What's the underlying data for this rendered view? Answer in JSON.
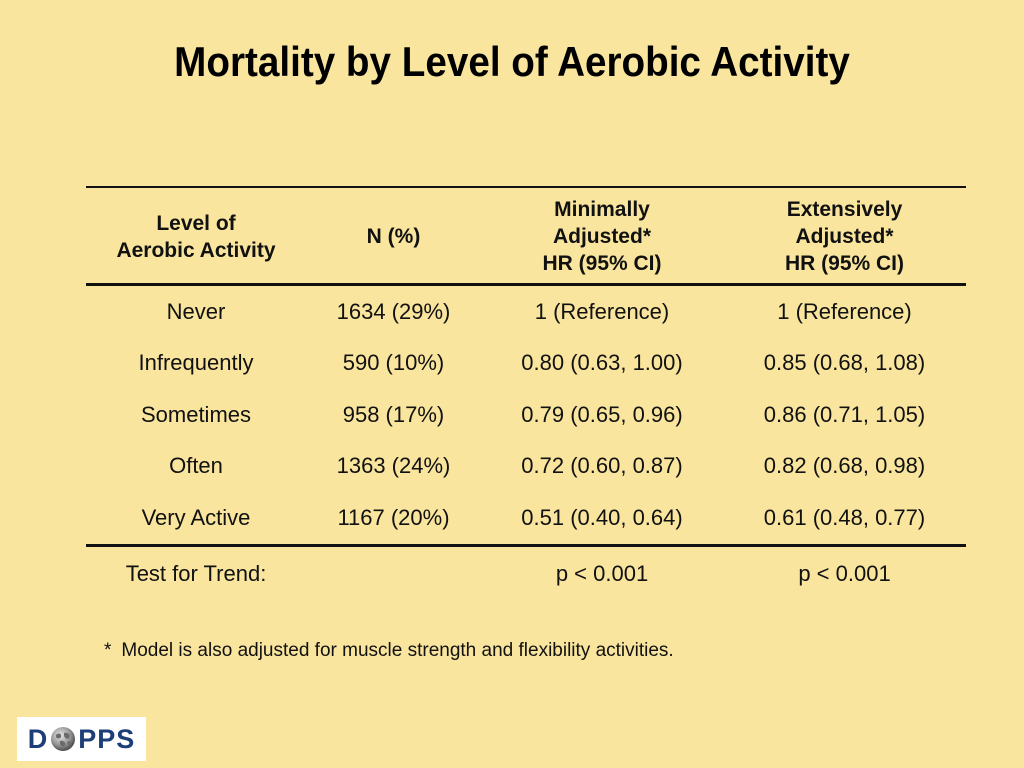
{
  "title": "Mortality by Level of Aerobic Activity",
  "table": {
    "headers": [
      [
        "Level of",
        "Aerobic Activity"
      ],
      [
        "N (%)"
      ],
      [
        "Minimally",
        "Adjusted*",
        "HR (95% CI)"
      ],
      [
        "Extensively",
        "Adjusted*",
        "HR (95% CI)"
      ]
    ],
    "rows": [
      [
        "Never",
        "1634 (29%)",
        "1 (Reference)",
        "1 (Reference)"
      ],
      [
        "Infrequently",
        "590 (10%)",
        "0.80 (0.63, 1.00)",
        "0.85 (0.68, 1.08)"
      ],
      [
        "Sometimes",
        "958 (17%)",
        "0.79 (0.65, 0.96)",
        "0.86 (0.71, 1.05)"
      ],
      [
        "Often",
        "1363 (24%)",
        "0.72 (0.60, 0.87)",
        "0.82 (0.68, 0.98)"
      ],
      [
        "Very Active",
        "1167 (20%)",
        "0.51 (0.40, 0.64)",
        "0.61 (0.48, 0.77)"
      ]
    ],
    "trend": [
      "Test for Trend:",
      "",
      "p < 0.001",
      "p < 0.001"
    ]
  },
  "footnote": {
    "marker": "*",
    "text": "Model is also adjusted for muscle strength and flexibility activities."
  },
  "logo": {
    "letters_left": "D",
    "letters_right": "PPS",
    "globe_icon": "globe-icon",
    "color": "#1c3f7a"
  },
  "colors": {
    "background": "#f9e59d",
    "text": "#111111"
  }
}
